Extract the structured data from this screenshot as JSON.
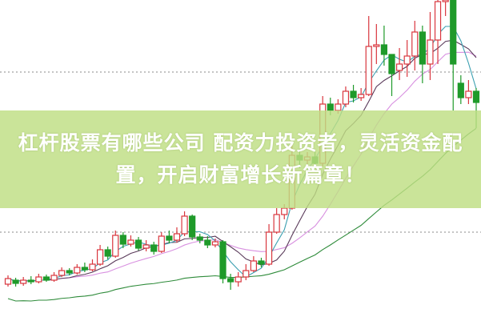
{
  "headline": {
    "line1": "杠杆股票有哪些公司 配资力投资者，灵活资金配",
    "line2": "置，开启财富增长新篇章！"
  },
  "chart_data": {
    "type": "candlestick",
    "ylim": [
      0,
      40
    ],
    "colors": {
      "up": "#d9363e",
      "down": "#1f9a2a",
      "ma5": "#3a9fb0",
      "ma10": "#5a3a5a",
      "ma20": "#d890e0",
      "ma60": "#2e8b3a",
      "grid": "#888888"
    },
    "candles_ohlc": [
      [
        4.5,
        5.2,
        5.6,
        4.2
      ],
      [
        5.0,
        4.6,
        5.3,
        4.2
      ],
      [
        4.6,
        5.0,
        5.4,
        4.3
      ],
      [
        5.0,
        4.8,
        5.5,
        4.5
      ],
      [
        4.8,
        5.4,
        5.8,
        4.6
      ],
      [
        5.4,
        5.0,
        5.7,
        4.8
      ],
      [
        5.0,
        5.6,
        6.0,
        4.8
      ],
      [
        5.6,
        6.2,
        6.6,
        5.4
      ],
      [
        6.2,
        5.9,
        6.5,
        5.6
      ],
      [
        5.9,
        6.6,
        7.0,
        5.7
      ],
      [
        6.6,
        6.3,
        7.2,
        6.0
      ],
      [
        6.3,
        7.0,
        7.6,
        6.1
      ],
      [
        7.0,
        8.8,
        9.4,
        6.8
      ],
      [
        8.8,
        8.0,
        9.2,
        7.6
      ],
      [
        8.0,
        10.6,
        11.2,
        7.8
      ],
      [
        10.6,
        9.5,
        11.0,
        9.0
      ],
      [
        9.5,
        10.0,
        10.6,
        9.2
      ],
      [
        10.0,
        9.0,
        10.4,
        8.7
      ],
      [
        9.0,
        9.4,
        10.0,
        8.6
      ],
      [
        9.4,
        8.6,
        9.8,
        8.2
      ],
      [
        8.6,
        10.5,
        11.0,
        8.4
      ],
      [
        10.5,
        10.0,
        11.2,
        9.6
      ],
      [
        10.0,
        10.8,
        11.6,
        9.7
      ],
      [
        10.8,
        13.0,
        13.6,
        10.5
      ],
      [
        13.0,
        10.4,
        13.2,
        10.0
      ],
      [
        10.4,
        10.0,
        10.8,
        9.6
      ],
      [
        10.0,
        9.4,
        10.5,
        9.0
      ],
      [
        9.4,
        9.8,
        10.2,
        9.1
      ],
      [
        9.8,
        5.2,
        10.0,
        4.6
      ],
      [
        5.2,
        4.8,
        5.8,
        3.8
      ],
      [
        4.8,
        5.4,
        6.0,
        4.2
      ],
      [
        5.4,
        6.2,
        7.0,
        5.0
      ],
      [
        6.2,
        7.4,
        8.0,
        6.0
      ],
      [
        7.4,
        7.0,
        7.8,
        6.6
      ],
      [
        7.0,
        11.0,
        12.0,
        6.8
      ],
      [
        11.0,
        13.2,
        14.0,
        10.8
      ],
      [
        13.2,
        14.0,
        14.5,
        12.6
      ],
      [
        14.0,
        20.6,
        22.0,
        13.8
      ],
      [
        20.6,
        20.0,
        21.4,
        19.0
      ],
      [
        20.0,
        20.4,
        21.0,
        19.5
      ],
      [
        20.4,
        19.6,
        21.0,
        19.0
      ],
      [
        19.6,
        27.0,
        28.0,
        19.2
      ],
      [
        27.0,
        26.2,
        27.8,
        25.6
      ],
      [
        26.2,
        27.0,
        27.6,
        25.8
      ],
      [
        27.0,
        28.6,
        29.2,
        26.6
      ],
      [
        28.6,
        27.8,
        29.4,
        27.2
      ],
      [
        27.8,
        28.2,
        29.0,
        27.4
      ],
      [
        28.2,
        34.2,
        38.0,
        28.0
      ],
      [
        34.2,
        34.4,
        37.0,
        32.0
      ],
      [
        34.4,
        33.2,
        36.8,
        31.8
      ],
      [
        33.2,
        30.8,
        31.8,
        28.0
      ],
      [
        31.2,
        32.0,
        34.0,
        30.0
      ],
      [
        32.0,
        33.0,
        35.0,
        30.4
      ],
      [
        33.0,
        36.0,
        37.4,
        31.2
      ],
      [
        36.0,
        32.0,
        36.8,
        29.6
      ],
      [
        32.0,
        35.0,
        38.5,
        30.0
      ],
      [
        35.0,
        39.8,
        40.0,
        32.0
      ],
      [
        39.8,
        40.0,
        40.0,
        38.0
      ],
      [
        40.0,
        32.0,
        40.0,
        26.2
      ],
      [
        29.6,
        27.8,
        30.6,
        27.0
      ],
      [
        27.8,
        28.6,
        30.0,
        27.0
      ],
      [
        28.6,
        27.2,
        29.0,
        24.0
      ]
    ]
  }
}
